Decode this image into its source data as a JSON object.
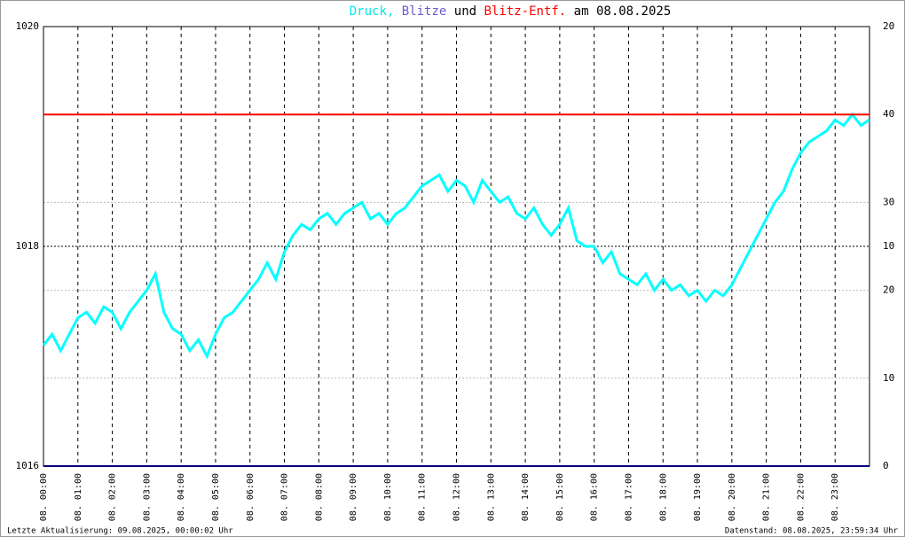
{
  "chart_data": {
    "type": "line",
    "title_parts": [
      {
        "text": "Druck,",
        "color": "#00e8e8"
      },
      {
        "text": "Blitze",
        "color": "#6a5acd"
      },
      {
        "text": "und",
        "color": "#000000"
      },
      {
        "text": "Blitz-Entf.",
        "color": "#ff0000"
      },
      {
        "text": "am 08.08.2025",
        "color": "#000000"
      }
    ],
    "xlim": [
      0,
      24
    ],
    "xticks": [
      {
        "value": 0,
        "label": "08. 00:00"
      },
      {
        "value": 1,
        "label": "08. 01:00"
      },
      {
        "value": 2,
        "label": "08. 02:00"
      },
      {
        "value": 3,
        "label": "08. 03:00"
      },
      {
        "value": 4,
        "label": "08. 04:00"
      },
      {
        "value": 5,
        "label": "08. 05:00"
      },
      {
        "value": 6,
        "label": "08. 06:00"
      },
      {
        "value": 7,
        "label": "08. 07:00"
      },
      {
        "value": 8,
        "label": "08. 08:00"
      },
      {
        "value": 9,
        "label": "08. 09:00"
      },
      {
        "value": 10,
        "label": "08. 10:00"
      },
      {
        "value": 11,
        "label": "08. 11:00"
      },
      {
        "value": 12,
        "label": "08. 12:00"
      },
      {
        "value": 13,
        "label": "08. 13:00"
      },
      {
        "value": 14,
        "label": "08. 14:00"
      },
      {
        "value": 15,
        "label": "08. 15:00"
      },
      {
        "value": 16,
        "label": "08. 16:00"
      },
      {
        "value": 17,
        "label": "08. 17:00"
      },
      {
        "value": 18,
        "label": "08. 18:00"
      },
      {
        "value": 19,
        "label": "08. 19:00"
      },
      {
        "value": 20,
        "label": "08. 20:00"
      },
      {
        "value": 21,
        "label": "08. 21:00"
      },
      {
        "value": 22,
        "label": "08. 22:00"
      },
      {
        "value": 23,
        "label": "08. 23:00"
      }
    ],
    "ylim": [
      1016,
      1020
    ],
    "yticks": [
      1016,
      1018,
      1020
    ],
    "y2lim": [
      0,
      50
    ],
    "y2ticks": [
      0,
      10,
      20,
      30,
      40
    ],
    "y3lim": [
      0,
      20
    ],
    "y3ticks": [
      10,
      20
    ],
    "pressure": {
      "name": "Druck",
      "color": "#00ffff",
      "x": [
        0,
        0.25,
        0.5,
        0.75,
        1,
        1.25,
        1.5,
        1.75,
        2,
        2.25,
        2.5,
        2.75,
        3,
        3.25,
        3.5,
        3.75,
        4,
        4.25,
        4.5,
        4.75,
        5,
        5.25,
        5.5,
        5.75,
        6,
        6.25,
        6.5,
        6.75,
        7,
        7.25,
        7.5,
        7.75,
        8,
        8.25,
        8.5,
        8.75,
        9,
        9.25,
        9.5,
        9.75,
        10,
        10.25,
        10.5,
        10.75,
        11,
        11.25,
        11.5,
        11.75,
        12,
        12.25,
        12.5,
        12.75,
        13,
        13.25,
        13.5,
        13.75,
        14,
        14.25,
        14.5,
        14.75,
        15,
        15.25,
        15.5,
        15.75,
        16,
        16.25,
        16.5,
        16.75,
        17,
        17.25,
        17.5,
        17.75,
        18,
        18.25,
        18.5,
        18.75,
        19,
        19.25,
        19.5,
        19.75,
        20,
        20.25,
        20.5,
        20.75,
        21,
        21.25,
        21.5,
        21.75,
        22,
        22.25,
        22.5,
        22.75,
        23,
        23.25,
        23.5,
        23.75,
        23.99
      ],
      "values": [
        1017.1,
        1017.2,
        1017.05,
        1017.2,
        1017.35,
        1017.4,
        1017.3,
        1017.45,
        1017.4,
        1017.25,
        1017.4,
        1017.5,
        1017.6,
        1017.75,
        1017.4,
        1017.25,
        1017.2,
        1017.05,
        1017.15,
        1017.0,
        1017.2,
        1017.35,
        1017.4,
        1017.5,
        1017.6,
        1017.7,
        1017.85,
        1017.7,
        1017.95,
        1018.1,
        1018.2,
        1018.15,
        1018.25,
        1018.3,
        1018.2,
        1018.3,
        1018.35,
        1018.4,
        1018.25,
        1018.3,
        1018.2,
        1018.3,
        1018.35,
        1018.45,
        1018.55,
        1018.6,
        1018.65,
        1018.5,
        1018.6,
        1018.55,
        1018.4,
        1018.6,
        1018.5,
        1018.4,
        1018.45,
        1018.3,
        1018.25,
        1018.35,
        1018.2,
        1018.1,
        1018.2,
        1018.35,
        1018.05,
        1018.0,
        1018.0,
        1017.85,
        1017.95,
        1017.75,
        1017.7,
        1017.65,
        1017.75,
        1017.6,
        1017.7,
        1017.6,
        1017.65,
        1017.55,
        1017.6,
        1017.5,
        1017.6,
        1017.55,
        1017.65,
        1017.8,
        1017.95,
        1018.1,
        1018.25,
        1018.4,
        1018.5,
        1018.7,
        1018.85,
        1018.95,
        1019.0,
        1019.05,
        1019.15,
        1019.1,
        1019.2,
        1019.1,
        1019.15
      ]
    },
    "series": [
      {
        "name": "Blitze",
        "color": "#000080",
        "axis": "y2",
        "x": [
          0,
          24
        ],
        "values": [
          0,
          0
        ]
      },
      {
        "name": "Blitz-Entf.",
        "color": "#ff0000",
        "axis": "y2",
        "x": [
          0,
          24
        ],
        "values": [
          40,
          40
        ]
      }
    ],
    "footer_left": "Letzte Aktualisierung: 09.08.2025, 00:00:02 Uhr",
    "footer_right": "Datenstand: 08.08.2025, 23:59:34 Uhr"
  }
}
